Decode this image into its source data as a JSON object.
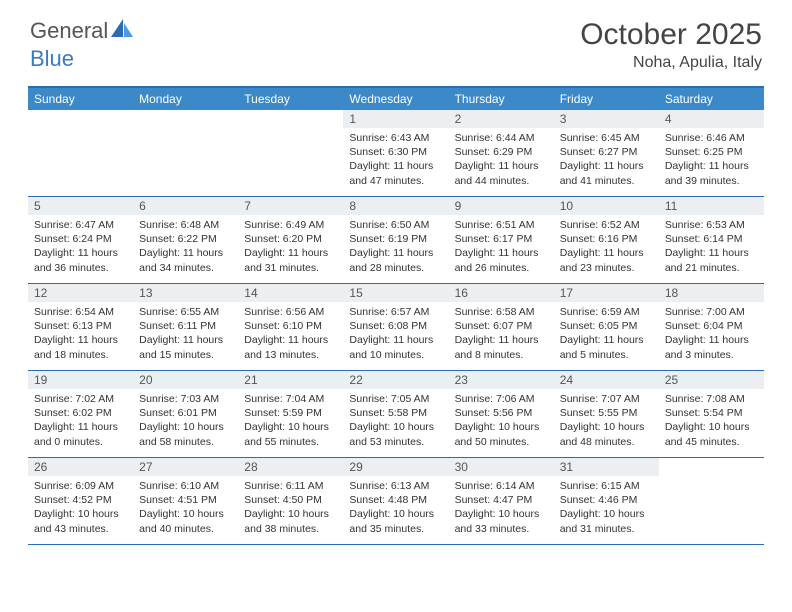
{
  "brand": {
    "part1": "General",
    "part2": "Blue"
  },
  "title": "October 2025",
  "location": "Noha, Apulia, Italy",
  "colors": {
    "header_bg": "#3b89c9",
    "header_border": "#2a6db5",
    "date_strip_bg": "#eceff1",
    "text": "#333333",
    "brand_gray": "#555555",
    "brand_blue": "#3b7bbf"
  },
  "day_names": [
    "Sunday",
    "Monday",
    "Tuesday",
    "Wednesday",
    "Thursday",
    "Friday",
    "Saturday"
  ],
  "weeks": [
    [
      {
        "date": "",
        "lines": []
      },
      {
        "date": "",
        "lines": []
      },
      {
        "date": "",
        "lines": []
      },
      {
        "date": "1",
        "lines": [
          "Sunrise: 6:43 AM",
          "Sunset: 6:30 PM",
          "Daylight: 11 hours",
          "and 47 minutes."
        ]
      },
      {
        "date": "2",
        "lines": [
          "Sunrise: 6:44 AM",
          "Sunset: 6:29 PM",
          "Daylight: 11 hours",
          "and 44 minutes."
        ]
      },
      {
        "date": "3",
        "lines": [
          "Sunrise: 6:45 AM",
          "Sunset: 6:27 PM",
          "Daylight: 11 hours",
          "and 41 minutes."
        ]
      },
      {
        "date": "4",
        "lines": [
          "Sunrise: 6:46 AM",
          "Sunset: 6:25 PM",
          "Daylight: 11 hours",
          "and 39 minutes."
        ]
      }
    ],
    [
      {
        "date": "5",
        "lines": [
          "Sunrise: 6:47 AM",
          "Sunset: 6:24 PM",
          "Daylight: 11 hours",
          "and 36 minutes."
        ]
      },
      {
        "date": "6",
        "lines": [
          "Sunrise: 6:48 AM",
          "Sunset: 6:22 PM",
          "Daylight: 11 hours",
          "and 34 minutes."
        ]
      },
      {
        "date": "7",
        "lines": [
          "Sunrise: 6:49 AM",
          "Sunset: 6:20 PM",
          "Daylight: 11 hours",
          "and 31 minutes."
        ]
      },
      {
        "date": "8",
        "lines": [
          "Sunrise: 6:50 AM",
          "Sunset: 6:19 PM",
          "Daylight: 11 hours",
          "and 28 minutes."
        ]
      },
      {
        "date": "9",
        "lines": [
          "Sunrise: 6:51 AM",
          "Sunset: 6:17 PM",
          "Daylight: 11 hours",
          "and 26 minutes."
        ]
      },
      {
        "date": "10",
        "lines": [
          "Sunrise: 6:52 AM",
          "Sunset: 6:16 PM",
          "Daylight: 11 hours",
          "and 23 minutes."
        ]
      },
      {
        "date": "11",
        "lines": [
          "Sunrise: 6:53 AM",
          "Sunset: 6:14 PM",
          "Daylight: 11 hours",
          "and 21 minutes."
        ]
      }
    ],
    [
      {
        "date": "12",
        "lines": [
          "Sunrise: 6:54 AM",
          "Sunset: 6:13 PM",
          "Daylight: 11 hours",
          "and 18 minutes."
        ]
      },
      {
        "date": "13",
        "lines": [
          "Sunrise: 6:55 AM",
          "Sunset: 6:11 PM",
          "Daylight: 11 hours",
          "and 15 minutes."
        ]
      },
      {
        "date": "14",
        "lines": [
          "Sunrise: 6:56 AM",
          "Sunset: 6:10 PM",
          "Daylight: 11 hours",
          "and 13 minutes."
        ]
      },
      {
        "date": "15",
        "lines": [
          "Sunrise: 6:57 AM",
          "Sunset: 6:08 PM",
          "Daylight: 11 hours",
          "and 10 minutes."
        ]
      },
      {
        "date": "16",
        "lines": [
          "Sunrise: 6:58 AM",
          "Sunset: 6:07 PM",
          "Daylight: 11 hours",
          "and 8 minutes."
        ]
      },
      {
        "date": "17",
        "lines": [
          "Sunrise: 6:59 AM",
          "Sunset: 6:05 PM",
          "Daylight: 11 hours",
          "and 5 minutes."
        ]
      },
      {
        "date": "18",
        "lines": [
          "Sunrise: 7:00 AM",
          "Sunset: 6:04 PM",
          "Daylight: 11 hours",
          "and 3 minutes."
        ]
      }
    ],
    [
      {
        "date": "19",
        "lines": [
          "Sunrise: 7:02 AM",
          "Sunset: 6:02 PM",
          "Daylight: 11 hours",
          "and 0 minutes."
        ]
      },
      {
        "date": "20",
        "lines": [
          "Sunrise: 7:03 AM",
          "Sunset: 6:01 PM",
          "Daylight: 10 hours",
          "and 58 minutes."
        ]
      },
      {
        "date": "21",
        "lines": [
          "Sunrise: 7:04 AM",
          "Sunset: 5:59 PM",
          "Daylight: 10 hours",
          "and 55 minutes."
        ]
      },
      {
        "date": "22",
        "lines": [
          "Sunrise: 7:05 AM",
          "Sunset: 5:58 PM",
          "Daylight: 10 hours",
          "and 53 minutes."
        ]
      },
      {
        "date": "23",
        "lines": [
          "Sunrise: 7:06 AM",
          "Sunset: 5:56 PM",
          "Daylight: 10 hours",
          "and 50 minutes."
        ]
      },
      {
        "date": "24",
        "lines": [
          "Sunrise: 7:07 AM",
          "Sunset: 5:55 PM",
          "Daylight: 10 hours",
          "and 48 minutes."
        ]
      },
      {
        "date": "25",
        "lines": [
          "Sunrise: 7:08 AM",
          "Sunset: 5:54 PM",
          "Daylight: 10 hours",
          "and 45 minutes."
        ]
      }
    ],
    [
      {
        "date": "26",
        "lines": [
          "Sunrise: 6:09 AM",
          "Sunset: 4:52 PM",
          "Daylight: 10 hours",
          "and 43 minutes."
        ]
      },
      {
        "date": "27",
        "lines": [
          "Sunrise: 6:10 AM",
          "Sunset: 4:51 PM",
          "Daylight: 10 hours",
          "and 40 minutes."
        ]
      },
      {
        "date": "28",
        "lines": [
          "Sunrise: 6:11 AM",
          "Sunset: 4:50 PM",
          "Daylight: 10 hours",
          "and 38 minutes."
        ]
      },
      {
        "date": "29",
        "lines": [
          "Sunrise: 6:13 AM",
          "Sunset: 4:48 PM",
          "Daylight: 10 hours",
          "and 35 minutes."
        ]
      },
      {
        "date": "30",
        "lines": [
          "Sunrise: 6:14 AM",
          "Sunset: 4:47 PM",
          "Daylight: 10 hours",
          "and 33 minutes."
        ]
      },
      {
        "date": "31",
        "lines": [
          "Sunrise: 6:15 AM",
          "Sunset: 4:46 PM",
          "Daylight: 10 hours",
          "and 31 minutes."
        ]
      },
      {
        "date": "",
        "lines": []
      }
    ]
  ]
}
